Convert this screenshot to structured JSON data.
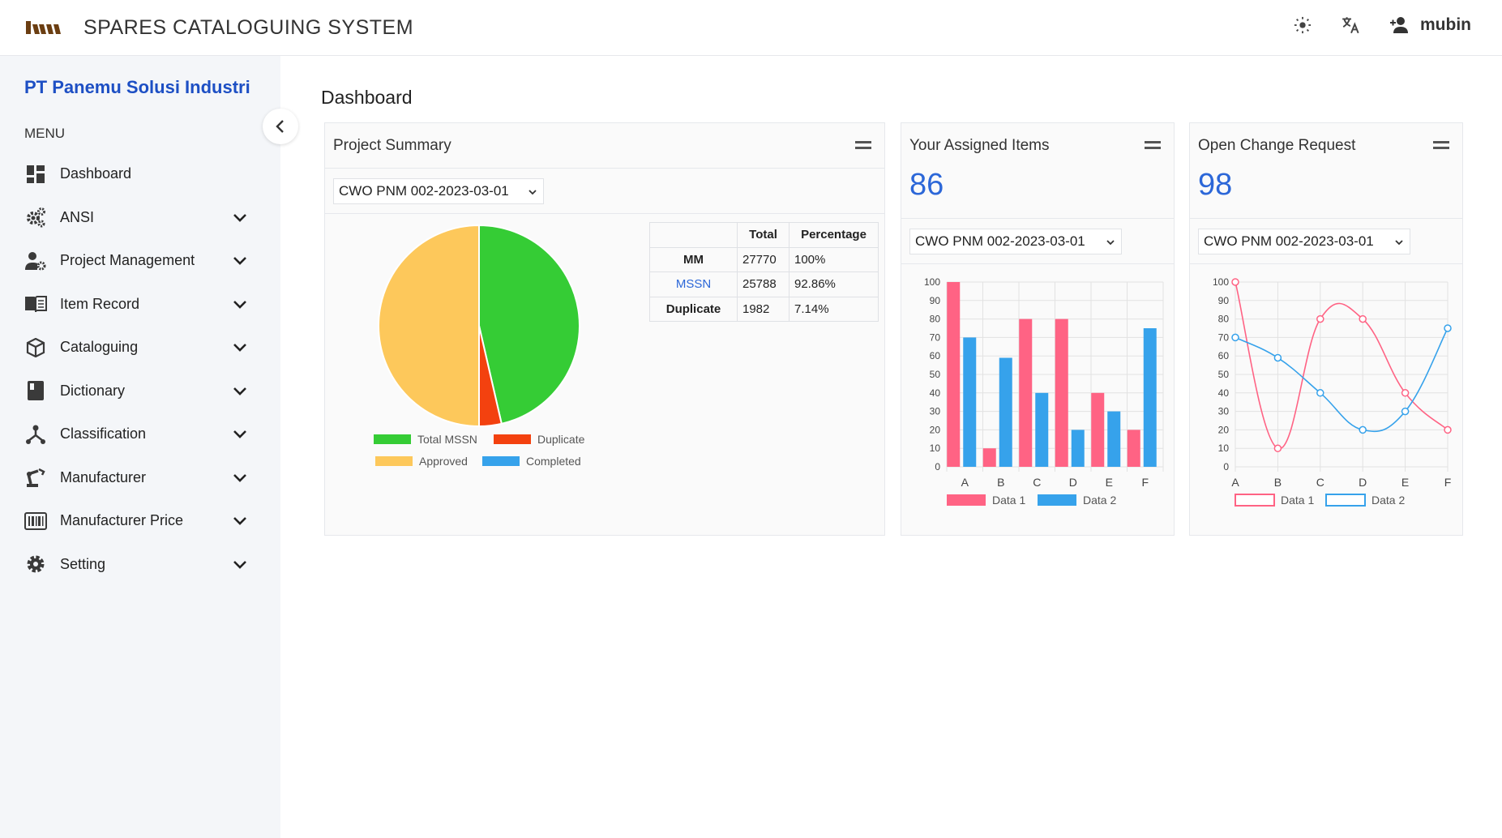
{
  "header": {
    "app_title": "SPARES CATALOGUING SYSTEM",
    "user_name": "mubin",
    "icons": [
      "brightness-icon",
      "translate-icon",
      "user-add-icon"
    ]
  },
  "sidebar": {
    "company": "PT Panemu Solusi Industri",
    "menu_label": "MENU",
    "items": [
      {
        "label": "Dashboard",
        "icon": "dashboard-icon",
        "expandable": false
      },
      {
        "label": "ANSI",
        "icon": "cogs-icon",
        "expandable": true
      },
      {
        "label": "Project Management",
        "icon": "user-gear-icon",
        "expandable": true
      },
      {
        "label": "Item Record",
        "icon": "book-icon",
        "expandable": true
      },
      {
        "label": "Cataloguing",
        "icon": "box-icon",
        "expandable": true
      },
      {
        "label": "Dictionary",
        "icon": "dictionary-icon",
        "expandable": true
      },
      {
        "label": "Classification",
        "icon": "hierarchy-icon",
        "expandable": true
      },
      {
        "label": "Manufacturer",
        "icon": "robot-arm-icon",
        "expandable": true
      },
      {
        "label": "Manufacturer Price",
        "icon": "barcode-icon",
        "expandable": true
      },
      {
        "label": "Setting",
        "icon": "gear-icon",
        "expandable": true
      }
    ]
  },
  "main": {
    "page_title": "Dashboard",
    "project_summary": {
      "title": "Project Summary",
      "select_value": "CWO PNM 002-2023-03-01",
      "table": {
        "headers": [
          "",
          "Total",
          "Percentage"
        ],
        "rows": [
          [
            "MM",
            "27770",
            "100%"
          ],
          [
            "MSSN",
            "25788",
            "92.86%"
          ],
          [
            "Duplicate",
            "1982",
            "7.14%"
          ]
        ]
      }
    },
    "assigned_items": {
      "title": "Your Assigned Items",
      "count": "86",
      "select_value": "CWO PNM 002-2023-03-01"
    },
    "open_change_request": {
      "title": "Open Change Request",
      "count": "98",
      "select_value": "CWO PNM 002-2023-03-01"
    }
  },
  "colors": {
    "accent": "#2c67d8",
    "company": "#1d4fc4",
    "green": "#35cc35",
    "red": "#f3410f",
    "yellow": "#fdc85b",
    "blue": "#36a2eb",
    "pink": "#ff6384"
  },
  "chart_data": [
    {
      "type": "pie",
      "labels": [
        "Total MSSN",
        "Duplicate",
        "Approved",
        "Completed"
      ],
      "values": [
        46.4,
        3.6,
        50,
        0
      ],
      "colors": [
        "#35cc35",
        "#f3410f",
        "#fdc85b",
        "#36a2eb"
      ],
      "legend": "bottom"
    },
    {
      "type": "bar",
      "categories": [
        "A",
        "B",
        "C",
        "D",
        "E",
        "F"
      ],
      "series": [
        {
          "name": "Data 1",
          "values": [
            100,
            10,
            80,
            80,
            40,
            20
          ],
          "color": "#ff6384"
        },
        {
          "name": "Data 2",
          "values": [
            70,
            59,
            40,
            20,
            30,
            75
          ],
          "color": "#36a2eb"
        }
      ],
      "ylim": [
        0,
        100
      ],
      "yticks": [
        0,
        10,
        20,
        30,
        40,
        50,
        60,
        70,
        80,
        90,
        100
      ],
      "grid": true,
      "legend": "bottom"
    },
    {
      "type": "line",
      "categories": [
        "A",
        "B",
        "C",
        "D",
        "E",
        "F"
      ],
      "series": [
        {
          "name": "Data 1",
          "values": [
            100,
            10,
            80,
            80,
            40,
            20
          ],
          "color": "#ff6384"
        },
        {
          "name": "Data 2",
          "values": [
            70,
            59,
            40,
            20,
            30,
            75
          ],
          "color": "#36a2eb"
        }
      ],
      "ylim": [
        0,
        100
      ],
      "yticks": [
        0,
        10,
        20,
        30,
        40,
        50,
        60,
        70,
        80,
        90,
        100
      ],
      "grid": true,
      "legend": "bottom"
    }
  ]
}
